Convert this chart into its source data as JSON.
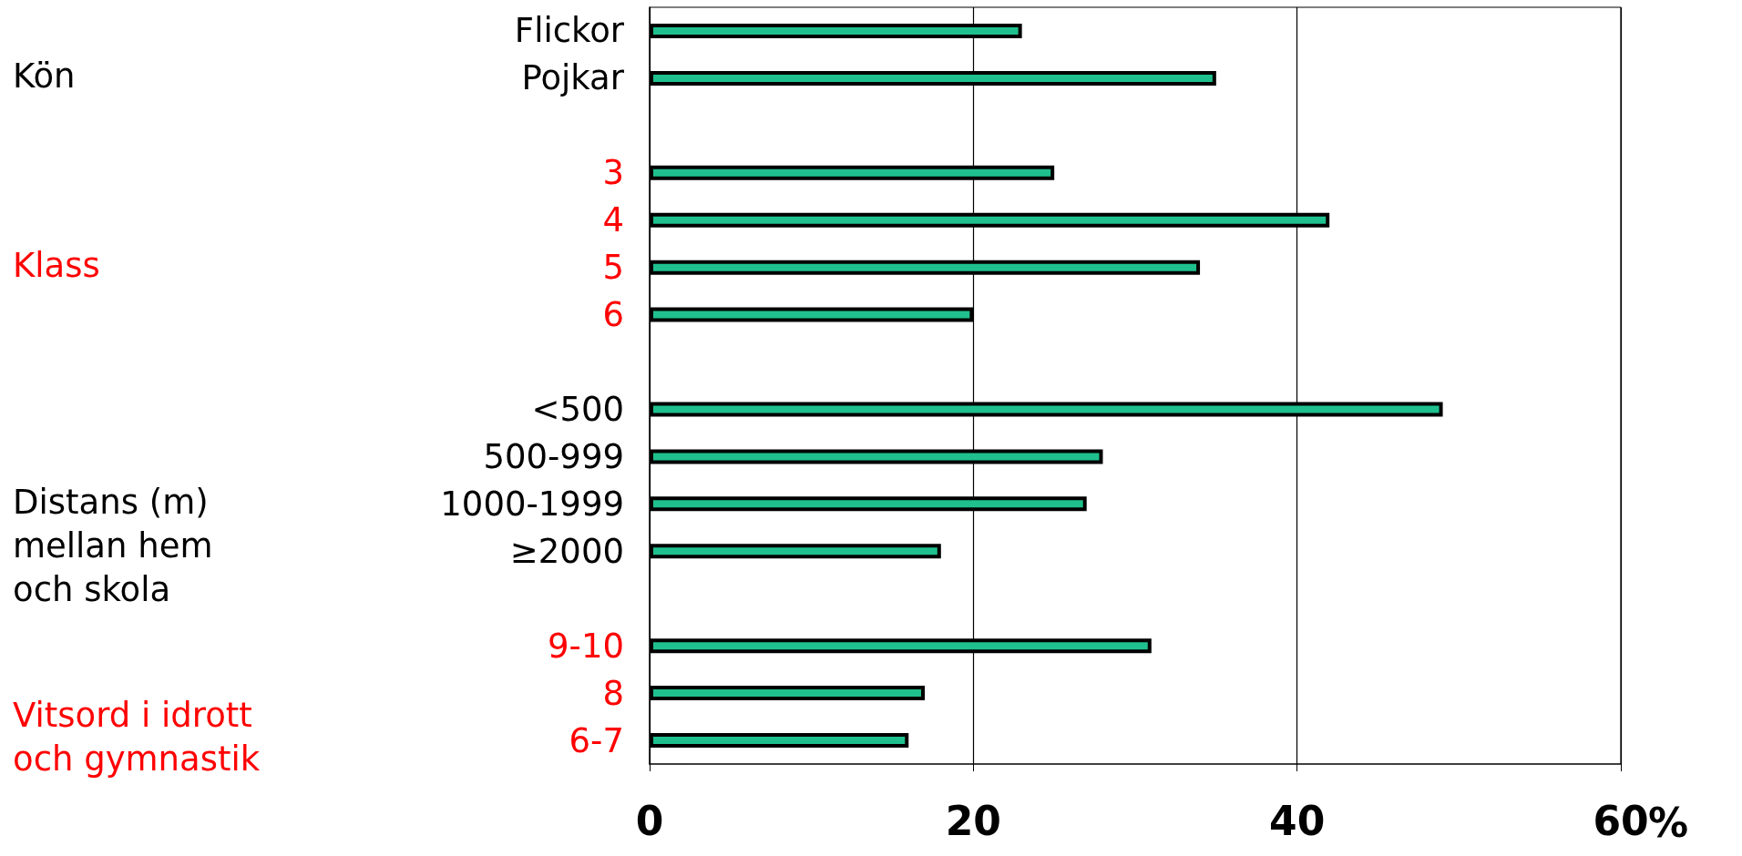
{
  "chart_data": {
    "type": "bar",
    "orientation": "horizontal",
    "categories": [
      "Flickor",
      "Pojkar",
      null,
      "3",
      "4",
      "5",
      "6",
      null,
      "<500",
      "500-999",
      "1000-1999",
      "≥2000",
      null,
      "9-10",
      "8",
      "6-7"
    ],
    "values": [
      23,
      35,
      null,
      25,
      42,
      34,
      20,
      null,
      49,
      28,
      27,
      18,
      null,
      31,
      17,
      16
    ],
    "color": "#1fc08e",
    "xlim": [
      0,
      60
    ],
    "xticks": [
      0,
      20,
      40,
      60
    ],
    "xlabel": "%",
    "grid": "x",
    "annotations": [
      "Kön",
      "Klass",
      "Distans (m)\nmellan hem\noch skola",
      "Vitsord i idrott\noch gymnastik"
    ]
  }
}
